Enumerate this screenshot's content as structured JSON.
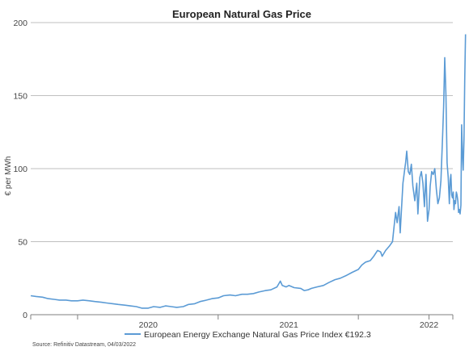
{
  "chart_data": {
    "type": "line",
    "title": "European Natural Gas Price",
    "ylabel": "€ per MWh",
    "xlabel": "",
    "ylim": [
      0,
      200
    ],
    "yticks": [
      0,
      50,
      100,
      150,
      200
    ],
    "xlim": [
      "2019-03-01",
      "2022-03-04"
    ],
    "xtick_labels": [
      {
        "date": "2020-01-01",
        "label": "2020"
      },
      {
        "date": "2021-01-01",
        "label": "2021"
      },
      {
        "date": "2022-01-01",
        "label": "2022"
      }
    ],
    "x_boundaries": [
      "2019-03-01",
      "2019-07-01",
      "2020-07-01",
      "2021-07-01",
      "2022-01-01",
      "2022-03-04"
    ],
    "grid": true,
    "legend_position": "bottom",
    "series": [
      {
        "name": "European Energy Exchange Natural Gas Price Index €192.3",
        "color": "#5b9bd5",
        "points": [
          [
            "2019-03-01",
            13
          ],
          [
            "2019-03-15",
            12.5
          ],
          [
            "2019-04-01",
            12
          ],
          [
            "2019-04-15",
            11
          ],
          [
            "2019-05-01",
            10.5
          ],
          [
            "2019-05-15",
            10
          ],
          [
            "2019-06-01",
            10
          ],
          [
            "2019-06-15",
            9.5
          ],
          [
            "2019-07-01",
            9.5
          ],
          [
            "2019-07-15",
            10
          ],
          [
            "2019-08-01",
            9.5
          ],
          [
            "2019-08-15",
            9
          ],
          [
            "2019-09-01",
            8.5
          ],
          [
            "2019-09-15",
            8
          ],
          [
            "2019-10-01",
            7.5
          ],
          [
            "2019-10-15",
            7
          ],
          [
            "2019-11-01",
            6.5
          ],
          [
            "2019-11-15",
            6
          ],
          [
            "2019-12-01",
            5.5
          ],
          [
            "2019-12-15",
            4.5
          ],
          [
            "2020-01-01",
            4.5
          ],
          [
            "2020-01-15",
            5.5
          ],
          [
            "2020-02-01",
            5
          ],
          [
            "2020-02-15",
            6
          ],
          [
            "2020-03-01",
            5.5
          ],
          [
            "2020-03-15",
            5
          ],
          [
            "2020-04-01",
            5.5
          ],
          [
            "2020-04-15",
            7
          ],
          [
            "2020-05-01",
            7.5
          ],
          [
            "2020-05-15",
            9
          ],
          [
            "2020-06-01",
            10
          ],
          [
            "2020-06-15",
            11
          ],
          [
            "2020-07-01",
            11.5
          ],
          [
            "2020-07-15",
            13
          ],
          [
            "2020-08-01",
            13.5
          ],
          [
            "2020-08-15",
            13
          ],
          [
            "2020-09-01",
            14
          ],
          [
            "2020-09-15",
            14
          ],
          [
            "2020-10-01",
            14.5
          ],
          [
            "2020-10-15",
            15.5
          ],
          [
            "2020-11-01",
            16.5
          ],
          [
            "2020-11-15",
            17
          ],
          [
            "2020-12-01",
            19
          ],
          [
            "2020-12-10",
            23
          ],
          [
            "2020-12-15",
            20
          ],
          [
            "2020-12-25",
            19
          ],
          [
            "2021-01-01",
            20
          ],
          [
            "2021-01-15",
            18.5
          ],
          [
            "2021-02-01",
            18
          ],
          [
            "2021-02-10",
            16.5
          ],
          [
            "2021-02-20",
            17
          ],
          [
            "2021-03-01",
            18
          ],
          [
            "2021-03-15",
            19
          ],
          [
            "2021-04-01",
            20
          ],
          [
            "2021-04-15",
            22
          ],
          [
            "2021-05-01",
            24
          ],
          [
            "2021-05-15",
            25
          ],
          [
            "2021-06-01",
            27
          ],
          [
            "2021-06-15",
            29
          ],
          [
            "2021-07-01",
            31
          ],
          [
            "2021-07-10",
            34
          ],
          [
            "2021-07-20",
            36
          ],
          [
            "2021-08-01",
            37
          ],
          [
            "2021-08-10",
            40
          ],
          [
            "2021-08-20",
            44
          ],
          [
            "2021-08-28",
            43
          ],
          [
            "2021-09-01",
            40
          ],
          [
            "2021-09-10",
            44
          ],
          [
            "2021-09-20",
            47
          ],
          [
            "2021-09-28",
            50
          ],
          [
            "2021-10-01",
            58
          ],
          [
            "2021-10-06",
            70
          ],
          [
            "2021-10-10",
            63
          ],
          [
            "2021-10-15",
            74
          ],
          [
            "2021-10-18",
            56
          ],
          [
            "2021-10-25",
            90
          ],
          [
            "2021-10-30",
            100
          ],
          [
            "2021-11-01",
            104
          ],
          [
            "2021-11-04",
            112
          ],
          [
            "2021-11-08",
            98
          ],
          [
            "2021-11-12",
            96
          ],
          [
            "2021-11-16",
            103
          ],
          [
            "2021-11-20",
            88
          ],
          [
            "2021-11-25",
            78
          ],
          [
            "2021-11-30",
            90
          ],
          [
            "2021-12-03",
            69
          ],
          [
            "2021-12-08",
            94
          ],
          [
            "2021-12-12",
            98
          ],
          [
            "2021-12-16",
            90
          ],
          [
            "2021-12-20",
            74
          ],
          [
            "2021-12-24",
            96
          ],
          [
            "2021-12-28",
            64
          ],
          [
            "2022-01-01",
            72
          ],
          [
            "2022-01-04",
            88
          ],
          [
            "2022-01-08",
            98
          ],
          [
            "2022-01-12",
            96
          ],
          [
            "2022-01-16",
            100
          ],
          [
            "2022-01-20",
            86
          ],
          [
            "2022-01-24",
            76
          ],
          [
            "2022-01-28",
            80
          ],
          [
            "2022-02-01",
            92
          ],
          [
            "2022-02-05",
            120
          ],
          [
            "2022-02-08",
            142
          ],
          [
            "2022-02-11",
            176
          ],
          [
            "2022-02-14",
            150
          ],
          [
            "2022-02-17",
            104
          ],
          [
            "2022-02-20",
            94
          ],
          [
            "2022-02-23",
            76
          ],
          [
            "2022-02-25",
            92
          ],
          [
            "2022-02-27",
            96
          ],
          [
            "2022-03-01",
            82
          ],
          [
            "2022-03-03",
            80
          ],
          [
            "2022-03-05",
            84
          ],
          [
            "2022-03-07",
            72
          ],
          [
            "2022-03-09",
            78
          ],
          [
            "2022-03-11",
            76
          ],
          [
            "2022-03-13",
            84
          ],
          [
            "2022-03-15",
            82
          ],
          [
            "2022-03-17",
            78
          ],
          [
            "2022-03-19",
            70
          ],
          [
            "2022-03-21",
            72
          ],
          [
            "2022-03-23",
            69
          ],
          [
            "2022-03-25",
            75
          ],
          [
            "2022-03-27",
            130
          ],
          [
            "2022-03-29",
            110
          ],
          [
            "2022-03-31",
            99
          ],
          [
            "2022-04-02",
            120
          ],
          [
            "2022-04-04",
            160
          ],
          [
            "2022-04-06",
            192
          ]
        ]
      }
    ],
    "source": "Source: Refinitiv Datastream, 04/03/2022"
  }
}
